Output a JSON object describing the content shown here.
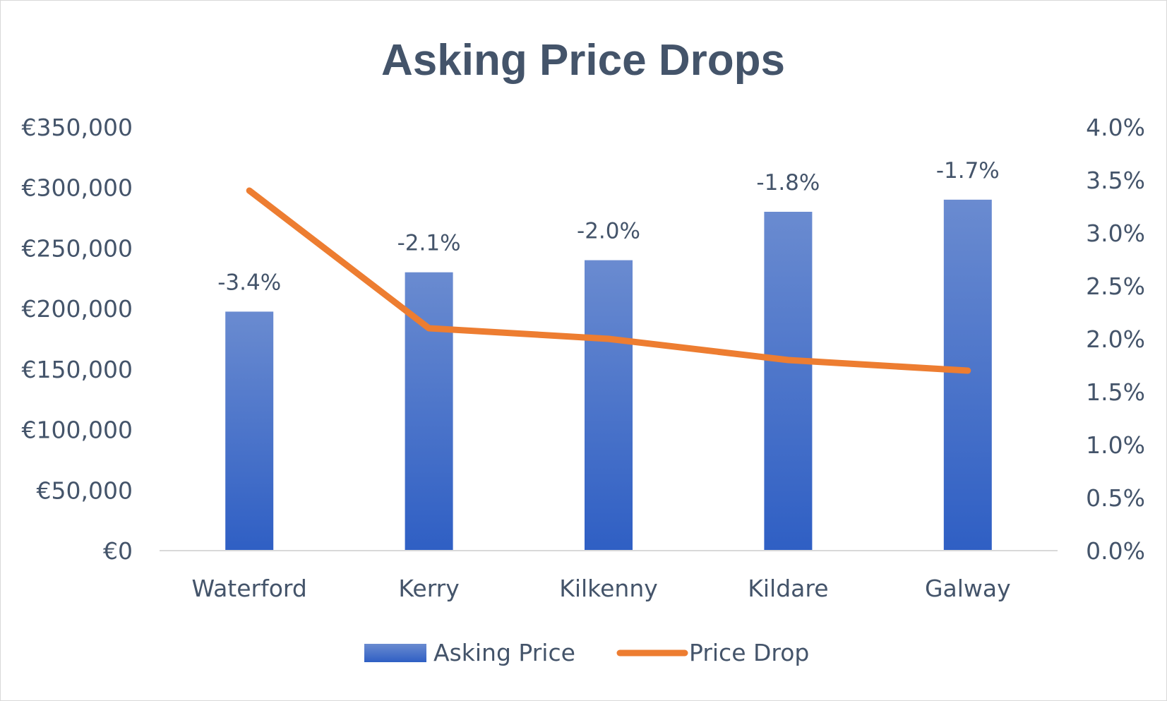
{
  "chart_data": {
    "type": "bar",
    "title": "Asking Price Drops",
    "categories": [
      "Waterford",
      "Kerry",
      "Kilkenny",
      "Kildare",
      "Galway"
    ],
    "series": [
      {
        "name": "Asking Price",
        "type": "bar",
        "axis": "left",
        "values": [
          197500,
          230000,
          240000,
          280000,
          290000
        ]
      },
      {
        "name": "Price Drop",
        "type": "line",
        "axis": "right",
        "values": [
          3.4,
          2.1,
          2.0,
          1.8,
          1.7
        ],
        "data_labels": [
          "-3.4%",
          "-2.1%",
          "-2.0%",
          "-1.8%",
          "-1.7%"
        ]
      }
    ],
    "y_left": {
      "min": 0,
      "max": 350000,
      "tick_labels": [
        "€0",
        "€50,000",
        "€100,000",
        "€150,000",
        "€200,000",
        "€250,000",
        "€300,000",
        "€350,000"
      ]
    },
    "y_right": {
      "min": 0,
      "max": 4.0,
      "tick_labels": [
        "0.0%",
        "0.5%",
        "1.0%",
        "1.5%",
        "2.0%",
        "2.5%",
        "3.0%",
        "3.5%",
        "4.0%"
      ]
    },
    "grid": false,
    "legend": "bottom",
    "colors": {
      "bar_top": "#6a8bd0",
      "bar_bottom": "#2f5fc4",
      "line": "#ed7d31",
      "text": "#44546a",
      "axis": "#d9d9d9"
    }
  }
}
